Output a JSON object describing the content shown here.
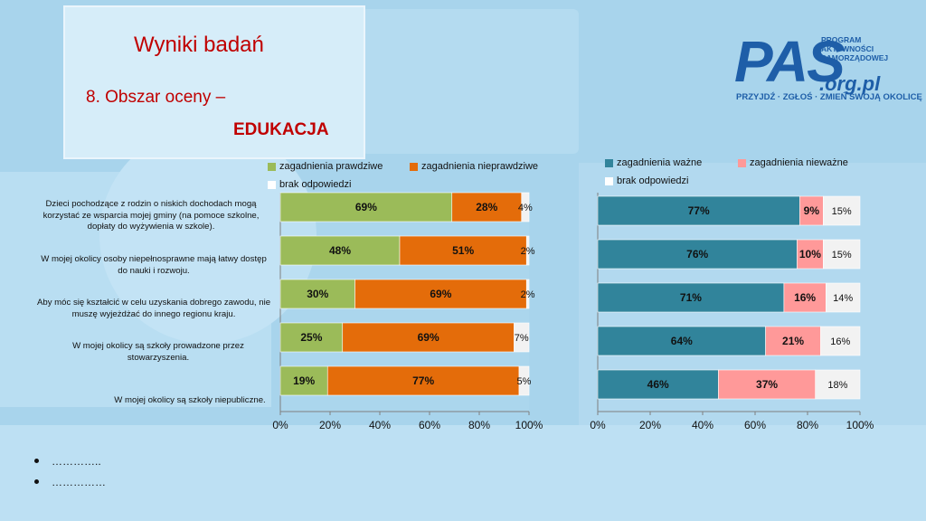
{
  "header": {
    "title": "Wyniki badań",
    "subtitle_1": "8. Obszar oceny –",
    "subtitle_2": "EDUKACJA"
  },
  "logo": {
    "main": "PAS",
    "small": "PROGRAM\nAKTYWNOŚCI\nSAMORZĄDOWEJ",
    "org": ".org.pl",
    "tagline": "PRZYJDŹ · ZGŁOŚ · ZMIEŃ SWOJĄ OKOLICĘ"
  },
  "bullets": [
    "…………..",
    "……………"
  ],
  "colors": {
    "green": "#9bbb59",
    "orange": "#e46c0a",
    "teal": "#31849b",
    "pink": "#ff9999",
    "white": "#f2f2f2",
    "title_red": "#c00000"
  },
  "chart_data": [
    {
      "type": "bar",
      "orientation": "horizontal",
      "stacked": true,
      "percent": true,
      "categories": [
        "Dzieci pochodzące z rodzin o niskich dochodach mogą korzystać ze wsparcia mojej gminy (na pomoce szkolne, dopłaty do wyżywienia w szkole).",
        "W mojej okolicy osoby niepełnosprawne mają łatwy dostęp do nauki i rozwoju.",
        "Aby móc się kształcić w celu uzyskania dobrego zawodu, nie muszę wyjeżdżać do innego regionu kraju.",
        "W mojej okolicy są szkoły prowadzone przez stowarzyszenia.",
        "W mojej okolicy są szkoły niepubliczne."
      ],
      "series": [
        {
          "name": "zagadnienia prawdziwe",
          "color": "#9bbb59",
          "values": [
            69,
            48,
            30,
            25,
            19
          ]
        },
        {
          "name": "zagadnienia nieprawdziwe",
          "color": "#e46c0a",
          "values": [
            28,
            51,
            69,
            69,
            77
          ]
        },
        {
          "name": "brak odpowiedzi",
          "color": "#f2f2f2",
          "values": [
            4,
            2,
            2,
            7,
            5
          ]
        }
      ],
      "xlim": [
        0,
        100
      ],
      "xticks": [
        "0%",
        "20%",
        "40%",
        "60%",
        "80%",
        "100%"
      ],
      "legend_position": "top"
    },
    {
      "type": "bar",
      "orientation": "horizontal",
      "stacked": true,
      "percent": true,
      "series": [
        {
          "name": "zagadnienia ważne",
          "color": "#31849b",
          "values": [
            77,
            76,
            71,
            64,
            46
          ]
        },
        {
          "name": "zagadnienia nieważne",
          "color": "#ff9999",
          "values": [
            9,
            10,
            16,
            21,
            37
          ]
        },
        {
          "name": "brak odpowiedzi",
          "color": "#f2f2f2",
          "values": [
            15,
            15,
            14,
            16,
            18
          ]
        }
      ],
      "xlim": [
        0,
        100
      ],
      "xticks": [
        "0%",
        "20%",
        "40%",
        "60%",
        "80%",
        "100%"
      ],
      "legend_position": "top"
    }
  ]
}
